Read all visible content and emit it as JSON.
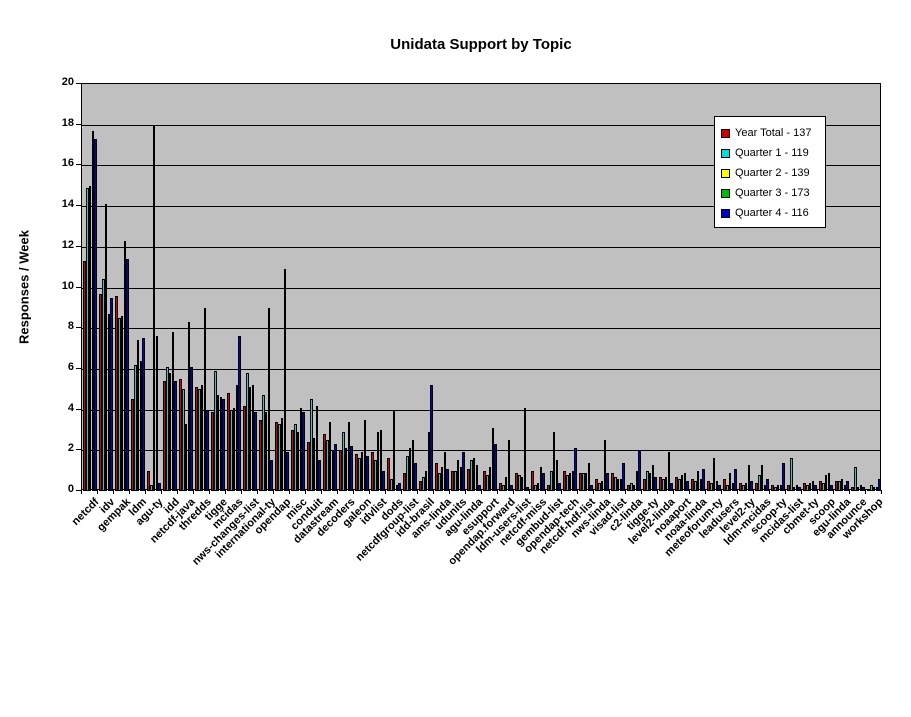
{
  "chart_data": {
    "type": "bar",
    "title": "Unidata Support by Topic",
    "ylabel": "Responses / Week",
    "xlabel": "",
    "ylim": [
      0,
      20
    ],
    "y_ticks": [
      0,
      2,
      4,
      6,
      8,
      10,
      12,
      14,
      16,
      18,
      20
    ],
    "grid": "horizontal lines every 2 units",
    "plot_background": "#c0c0c0",
    "legend_position": "top-right inside plot",
    "categories": [
      "netcdf",
      "idv",
      "gempak",
      "ldm",
      "agu-ty",
      "idd",
      "netcdf-java",
      "thredds",
      "tigge",
      "mcidas",
      "nws-changes-list",
      "international-ty",
      "opendap",
      "misc",
      "conduit",
      "datastream",
      "decoders",
      "galeon",
      "idvlist",
      "dods",
      "netcdfgroup-list",
      "idd-brasil",
      "ams-linda",
      "udunits",
      "agu-linda",
      "esupport",
      "opendap.forward",
      "ldm-users-list",
      "netcdf-miss",
      "gembud-list",
      "opendap-tech",
      "netcdf-hdf-list",
      "nws-linda",
      "visad-list",
      "c2-linda",
      "tigge-ty",
      "level2-linda",
      "noaaport",
      "noaa-linda",
      "meteoforum-ty",
      "leadusers",
      "level2-ty",
      "ldm-mcidas",
      "scoop-ty",
      "mcidas-list",
      "cbmet-ty",
      "scoop",
      "egu-linda",
      "announce",
      "workshop"
    ],
    "series": [
      {
        "name": "Year Total - 137",
        "color": "#cc0000",
        "values": [
          11.3,
          9.7,
          9.6,
          4.5,
          1.0,
          5.4,
          5.5,
          5.1,
          3.9,
          4.8,
          4.2,
          3.5,
          3.4,
          3.0,
          2.4,
          2.8,
          2.0,
          1.8,
          1.9,
          1.6,
          0.9,
          0.5,
          1.4,
          1.0,
          1.1,
          1.0,
          0.4,
          0.9,
          1.0,
          0.3,
          1.0,
          0.9,
          0.6,
          0.9,
          0.3,
          0.6,
          0.7,
          0.7,
          0.6,
          0.5,
          0.6,
          0.4,
          0.4,
          0.3,
          0.3,
          0.4,
          0.5,
          0.5,
          0.2,
          0.1
        ]
      },
      {
        "name": "Quarter 1 - 119",
        "color": "#00dddd",
        "values": [
          14.9,
          10.4,
          8.5,
          6.2,
          0.3,
          6.1,
          5.0,
          5.0,
          5.9,
          4.0,
          5.8,
          4.7,
          3.3,
          3.3,
          4.5,
          2.5,
          2.9,
          1.6,
          1.5,
          0.6,
          1.7,
          0.7,
          0.9,
          1.0,
          1.5,
          0.8,
          0.3,
          0.8,
          0.3,
          1.0,
          0.8,
          0.9,
          0.4,
          0.7,
          0.4,
          1.0,
          0.6,
          0.6,
          0.5,
          0.4,
          0.3,
          0.3,
          0.8,
          0.2,
          1.6,
          0.3,
          0.4,
          0.5,
          1.2,
          0.3
        ]
      },
      {
        "name": "Quarter 2 - 139",
        "color": "#ffff00",
        "values": [
          15.0,
          14.1,
          8.6,
          7.4,
          18.0,
          5.8,
          3.3,
          5.2,
          4.7,
          4.1,
          5.1,
          3.9,
          3.6,
          2.9,
          2.6,
          3.4,
          2.1,
          1.9,
          2.9,
          4.0,
          2.1,
          1.0,
          1.2,
          1.5,
          1.6,
          1.2,
          0.7,
          0.7,
          0.4,
          2.9,
          0.9,
          0.9,
          0.5,
          0.6,
          0.3,
          0.9,
          0.7,
          0.8,
          1.0,
          1.6,
          0.9,
          0.4,
          1.3,
          0.3,
          0.2,
          0.4,
          0.8,
          0.6,
          0.2,
          0.2
        ]
      },
      {
        "name": "Quarter 3 - 173",
        "color": "#00bb00",
        "values": [
          17.7,
          8.7,
          12.3,
          6.4,
          7.6,
          7.8,
          8.3,
          9.0,
          4.6,
          5.2,
          5.2,
          9.0,
          10.9,
          4.1,
          4.2,
          2.0,
          3.4,
          3.5,
          3.0,
          0.3,
          2.5,
          2.9,
          1.9,
          1.2,
          1.3,
          3.1,
          2.5,
          4.1,
          1.2,
          1.5,
          1.0,
          1.4,
          2.5,
          0.6,
          1.0,
          1.3,
          1.9,
          0.9,
          0.6,
          0.5,
          0.4,
          1.3,
          0.3,
          0.3,
          0.3,
          0.5,
          0.9,
          0.3,
          0.3,
          0.2
        ]
      },
      {
        "name": "Quarter 4 - 116",
        "color": "#0000cc",
        "values": [
          17.3,
          9.5,
          11.4,
          7.5,
          0.4,
          5.4,
          6.1,
          4.0,
          4.5,
          7.6,
          3.9,
          1.5,
          1.9,
          3.9,
          1.5,
          2.3,
          2.2,
          1.7,
          1.0,
          0.4,
          1.4,
          5.2,
          1.1,
          1.9,
          0.3,
          2.3,
          0.3,
          0.2,
          0.9,
          0.4,
          2.1,
          0.3,
          0.9,
          1.4,
          2.0,
          0.7,
          0.4,
          0.5,
          1.1,
          0.3,
          1.1,
          0.5,
          0.6,
          1.4,
          0.2,
          0.3,
          0.3,
          0.5,
          0.2,
          0.6
        ]
      }
    ]
  }
}
